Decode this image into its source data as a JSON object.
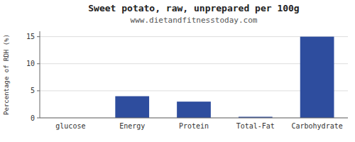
{
  "chart_data": {
    "type": "bar",
    "title": "Sweet potato, raw, unprepared per 100g",
    "subtitle": "www.dietandfitnesstoday.com",
    "categories": [
      "glucose",
      "Energy",
      "Protein",
      "Total-Fat",
      "Carbohydrate"
    ],
    "values": [
      0,
      4,
      3,
      0.2,
      15
    ],
    "color": "#2e4d9e",
    "ylabel": "Percentage of RDH (%)",
    "ylim": [
      0,
      16
    ],
    "yticks": [
      0,
      5,
      10,
      15
    ],
    "grid": true
  }
}
